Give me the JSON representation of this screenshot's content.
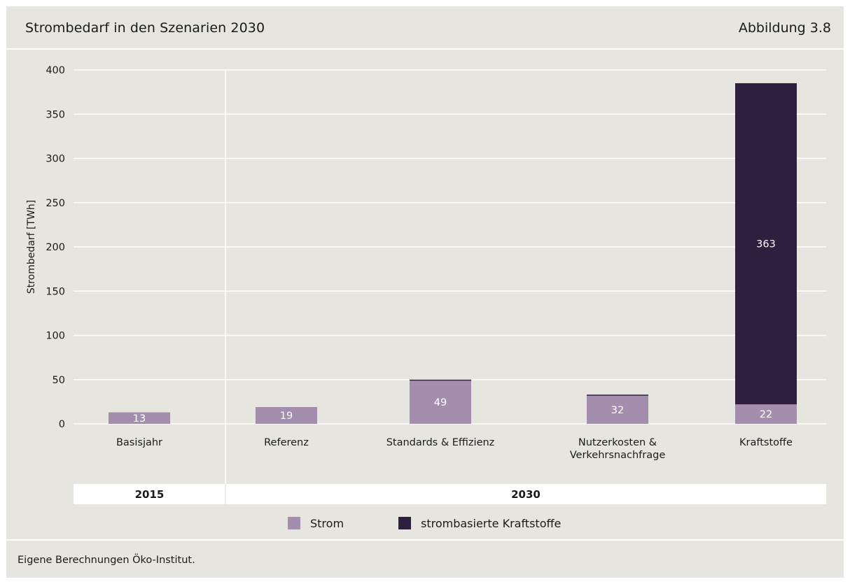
{
  "header": {
    "title": "Strombedarf in den Szenarien 2030",
    "figure_number": "Abbildung 3.8"
  },
  "footer": {
    "source": "Eigene Berechnungen Öko-Institut."
  },
  "colors": {
    "background": "#e6e5e0",
    "strom": "#a48eae",
    "kraftstoffe": "#2f1f3f",
    "grid": "#ffffff"
  },
  "chart_data": {
    "type": "bar",
    "stacked": true,
    "title": "",
    "xlabel": "",
    "ylabel": "Strombedarf [TWh]",
    "ylim": [
      0,
      400
    ],
    "yticks": [
      0,
      50,
      100,
      150,
      200,
      250,
      300,
      350,
      400
    ],
    "grid": true,
    "categories": [
      "Basisjahr",
      "Referenz",
      "Standards & Effizienz",
      "Nutzerkosten & Verkehrsnachfrage",
      "Kraftstoffe"
    ],
    "category_lines": [
      [
        "Basisjahr"
      ],
      [
        "Referenz"
      ],
      [
        "Standards & Effizienz"
      ],
      [
        "Nutzerkosten &",
        "Verkehrsnachfrage"
      ],
      [
        "Kraftstoffe"
      ]
    ],
    "groups": [
      {
        "label": "2015",
        "categories": [
          "Basisjahr"
        ]
      },
      {
        "label": "2030",
        "categories": [
          "Referenz",
          "Standards & Effizienz",
          "Nutzerkosten & Verkehrsnachfrage",
          "Kraftstoffe"
        ]
      }
    ],
    "series": [
      {
        "name": "Strom",
        "color": "#a48eae",
        "values": [
          13,
          19,
          49,
          32,
          22
        ]
      },
      {
        "name": "strombasierte Kraftstoffe",
        "color": "#2f1f3f",
        "values": [
          0,
          0,
          1,
          1,
          363
        ]
      }
    ],
    "data_labels": [
      [
        "13",
        "19",
        "49",
        "32",
        "22"
      ],
      [
        null,
        null,
        null,
        null,
        "363"
      ]
    ],
    "legend_placement": "bottom-center"
  }
}
